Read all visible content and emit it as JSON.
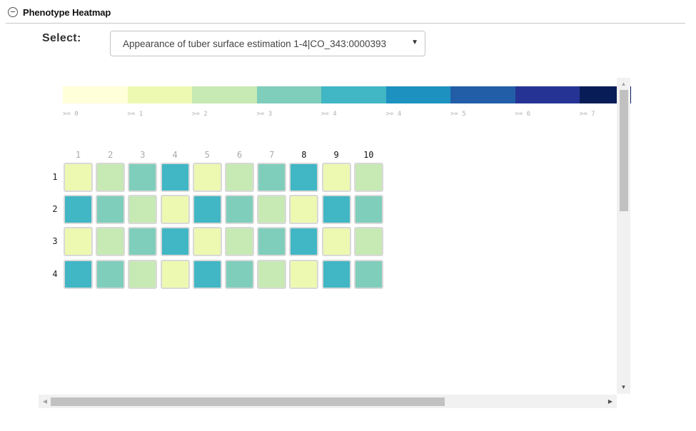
{
  "panel": {
    "title": "Phenotype Heatmap",
    "collapse_icon": "minus-circle-icon"
  },
  "selector": {
    "label": "Select:",
    "selected": "Appearance of tuber surface estimation 1-4|CO_343:0000393",
    "arrow_icon": "triangle-down-icon"
  },
  "legend": {
    "colors": [
      "#ffffd9",
      "#edf8b1",
      "#c7e9b4",
      "#7fcdbb",
      "#41b6c4",
      "#1d91c0",
      "#225ea8",
      "#253494",
      "#081d58"
    ],
    "labels": [
      ">= 0",
      ">= 1",
      ">= 2",
      ">= 3",
      ">= 4",
      ">= 4",
      ">= 5",
      ">= 6",
      ">= 7"
    ]
  },
  "chart_data": {
    "type": "heatmap",
    "columns": [
      "1",
      "2",
      "3",
      "4",
      "5",
      "6",
      "7",
      "8",
      "9",
      "10"
    ],
    "rows": [
      "1",
      "2",
      "3",
      "4"
    ],
    "values": [
      [
        1,
        2,
        3,
        4,
        1,
        2,
        3,
        4,
        1,
        2
      ],
      [
        4,
        3,
        2,
        1,
        4,
        3,
        2,
        1,
        4,
        3
      ],
      [
        1,
        2,
        3,
        4,
        1,
        2,
        3,
        4,
        1,
        2
      ],
      [
        4,
        3,
        2,
        1,
        4,
        3,
        2,
        1,
        4,
        3
      ]
    ],
    "value_colors": {
      "1": "#edf8b1",
      "2": "#c7e9b4",
      "3": "#7fcdbb",
      "4": "#41b6c4"
    },
    "emphasized_columns": [
      "8",
      "9",
      "10"
    ]
  },
  "scrollbars": {
    "up_icon": "arrow-up-icon",
    "down_icon": "arrow-down-icon",
    "left_icon": "arrow-left-icon",
    "right_icon": "arrow-right-icon"
  }
}
